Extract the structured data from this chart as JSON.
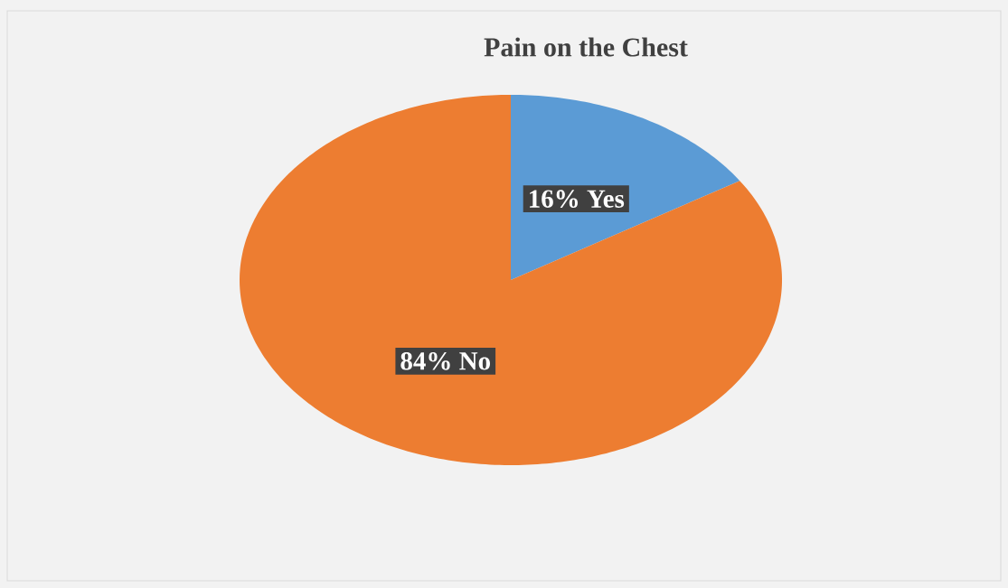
{
  "chart_data": {
    "type": "pie",
    "title": "Pain on the Chest",
    "categories": [
      "Yes",
      "No"
    ],
    "values": [
      16,
      84
    ],
    "colors": [
      "#5b9bd5",
      "#ed7d31"
    ],
    "value_labels": [
      "16%",
      "84%"
    ]
  }
}
